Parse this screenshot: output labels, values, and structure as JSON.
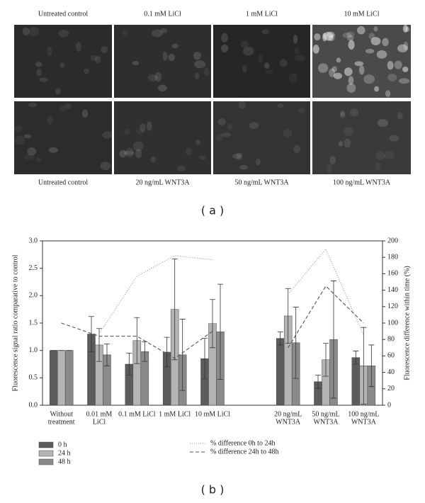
{
  "panel_a": {
    "top_labels": [
      "Untreated control",
      "0.1 mM LiCl",
      "1 mM LiCl",
      "10 mM LiCl"
    ],
    "bottom_labels": [
      "Untreated control",
      "20 ng/mL WNT3A",
      "50 ng/mL WNT3A",
      "100 ng/mL WNT3A"
    ],
    "caption": "( a )"
  },
  "chart_data": {
    "type": "bar",
    "ylabel": "Fluorescence signal ratio comparative to control",
    "y2label": "Fluorescence difference within time (%)",
    "categories": [
      [
        "Without",
        "treatment"
      ],
      [
        "0.01 mM",
        "LiCl"
      ],
      [
        "0.1 mM LiCl"
      ],
      [
        "1 mM LiCl"
      ],
      [
        "10 mM LiCl"
      ],
      null,
      [
        "20 ng/mL",
        "WNT3A"
      ],
      [
        "50 ng/mL",
        "WNT3A"
      ],
      [
        "100 ng/mL",
        "WNT3A"
      ]
    ],
    "ylim": [
      0,
      3
    ],
    "yticks": [
      {
        "value": 0,
        "label": "0.0"
      },
      {
        "value": 0.5,
        "label": "0.5"
      },
      {
        "value": 1,
        "label": "1.0"
      },
      {
        "value": 1.5,
        "label": "1.5"
      },
      {
        "value": 2,
        "label": "2.0"
      },
      {
        "value": 2.5,
        "label": "2.5"
      },
      {
        "value": 3,
        "label": "3.0"
      }
    ],
    "y2lim": [
      0,
      200
    ],
    "y2ticks": [
      0,
      20,
      40,
      60,
      80,
      100,
      120,
      140,
      160,
      180,
      200
    ],
    "series": [
      {
        "name": "0 h",
        "color": "#5c5c5c",
        "values": [
          1.0,
          1.3,
          0.75,
          0.97,
          0.85,
          null,
          1.22,
          0.43,
          0.87
        ],
        "errors": [
          0,
          0.32,
          0.2,
          0.27,
          0.37,
          null,
          0.12,
          0.12,
          0.12
        ]
      },
      {
        "name": "24 h",
        "color": "#b4b4b4",
        "values": [
          1.0,
          1.1,
          1.18,
          1.75,
          1.49,
          null,
          1.63,
          0.83,
          0.72
        ],
        "errors": [
          0,
          0.3,
          0.42,
          0.92,
          0.44,
          null,
          0.5,
          0.3,
          0.7
        ]
      },
      {
        "name": "48 h",
        "color": "#8a8a8a",
        "values": [
          1.0,
          0.92,
          0.98,
          0.92,
          1.34,
          null,
          1.14,
          1.2,
          0.72
        ],
        "errors": [
          0,
          0.2,
          0.18,
          0.65,
          0.87,
          null,
          0.65,
          1.07,
          0.38
        ]
      },
      {
        "name": "% difference 0h to 24h",
        "type": "line",
        "dash": "1,2",
        "color": "#999999",
        "axis": "y2",
        "values": [
          null,
          87,
          157,
          182,
          177,
          null,
          135,
          190,
          85
        ]
      },
      {
        "name": "% difference 24h to 48h",
        "type": "line",
        "dash": "5,3",
        "color": "#555555",
        "axis": "y2",
        "values": [
          100,
          84,
          84,
          57,
          90,
          null,
          70,
          145,
          100
        ]
      }
    ],
    "caption": "( b )"
  }
}
